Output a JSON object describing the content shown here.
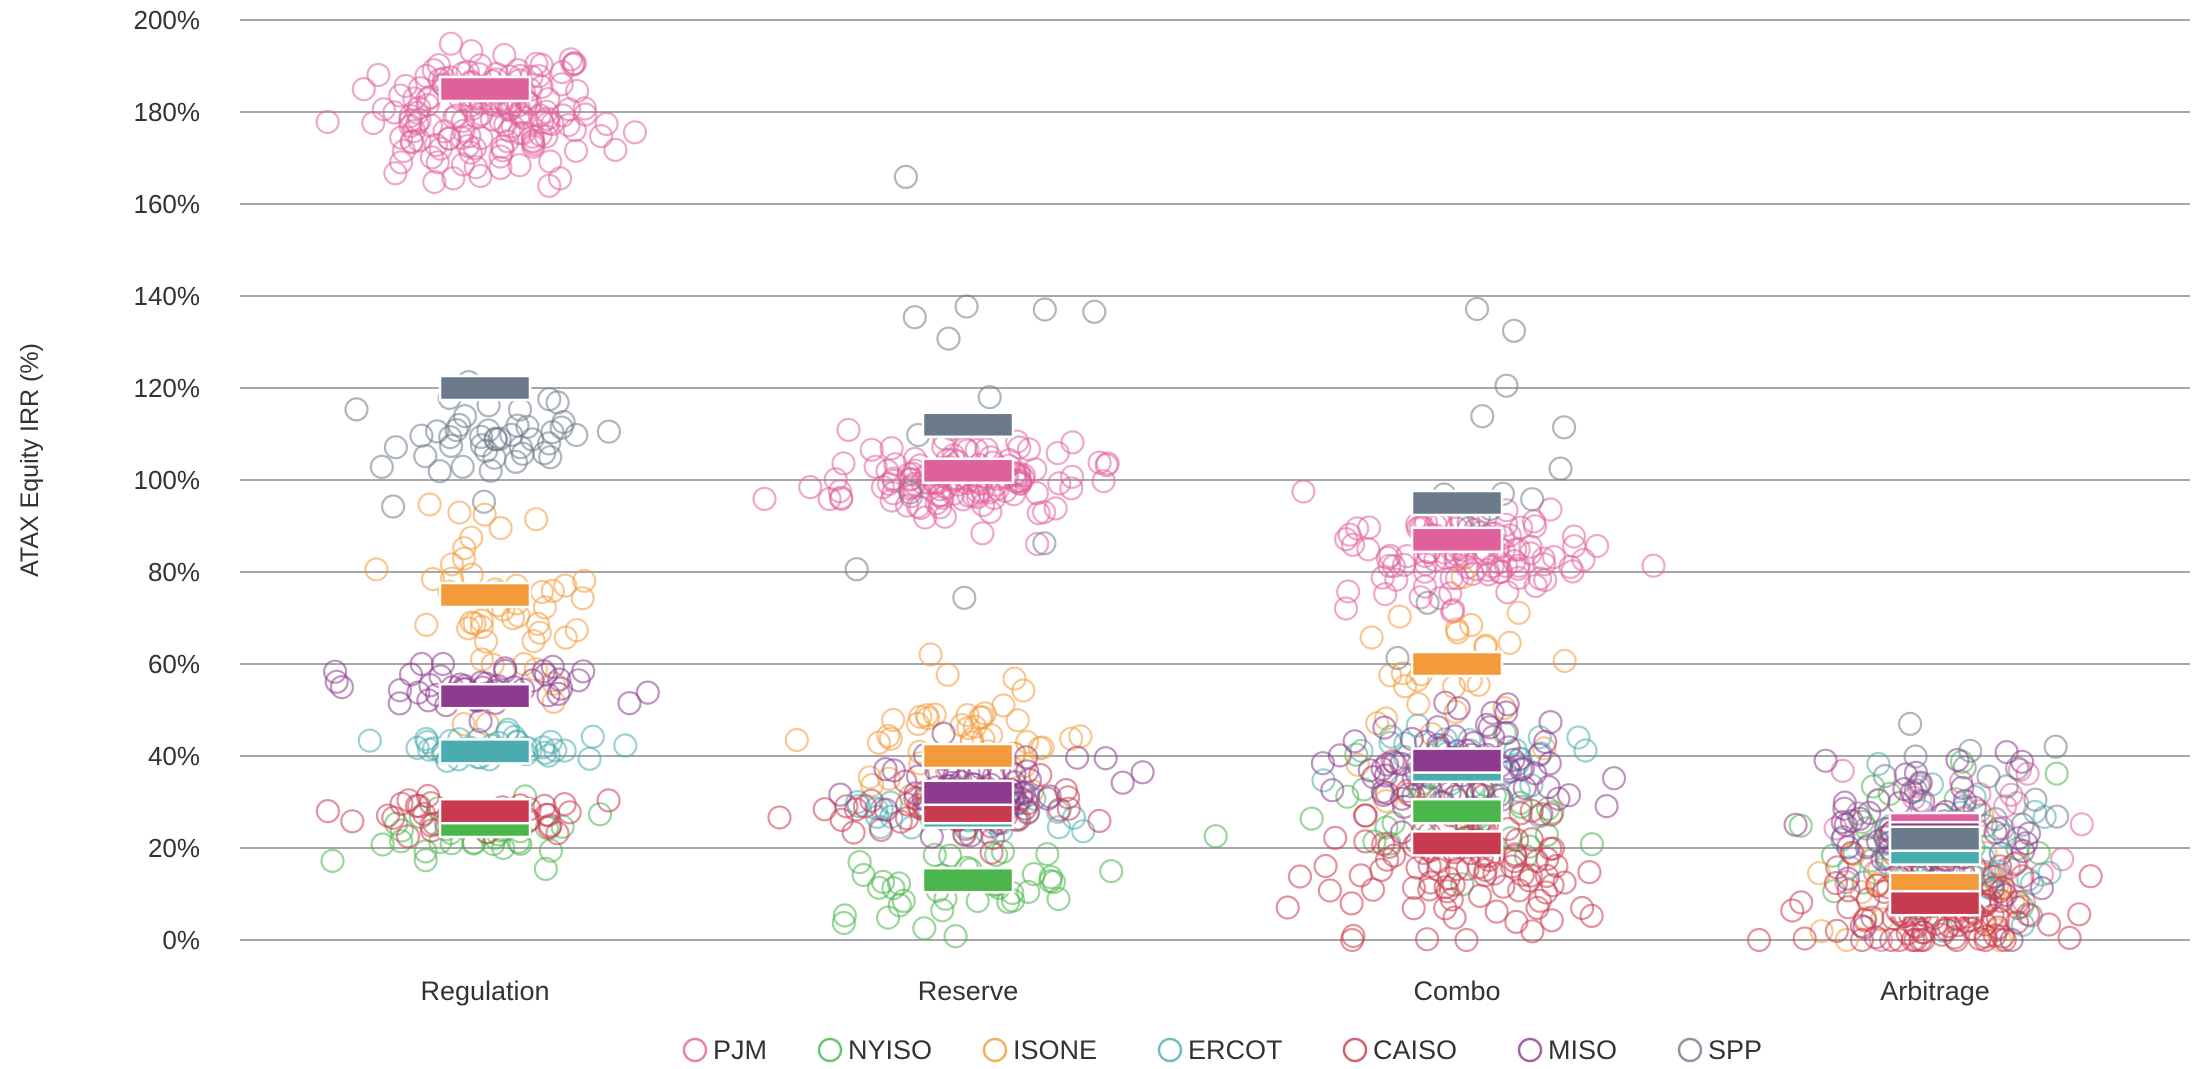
{
  "chart_data": {
    "type": "scatter",
    "title": "",
    "xlabel": "",
    "ylabel": "ATAX Equity IRR (%)",
    "ylim": [
      0,
      200
    ],
    "yticks": [
      0,
      20,
      40,
      60,
      80,
      100,
      120,
      140,
      160,
      180,
      200
    ],
    "ytick_labels": [
      "0%",
      "20%",
      "40%",
      "60%",
      "80%",
      "100%",
      "120%",
      "140%",
      "160%",
      "180%",
      "200%"
    ],
    "grid": true,
    "legend_position": "bottom",
    "categories": [
      "Regulation",
      "Reserve",
      "Combo",
      "Arbitrage"
    ],
    "colors": {
      "PJM": "#e0609e",
      "NYISO": "#4ab54a",
      "ISONE": "#f39a3a",
      "ERCOT": "#4aacae",
      "CAISO": "#c83a4e",
      "MISO": "#8e3a8e",
      "SPP": "#6b7a8a"
    },
    "series": [
      {
        "name": "PJM",
        "mean": [
          185,
          102,
          87,
          25
        ],
        "clusters": [
          [
            180,
            7,
            160
          ],
          [
            100,
            4,
            130
          ],
          [
            84,
            6,
            110
          ],
          [
            22,
            10,
            40
          ]
        ]
      },
      {
        "name": "NYISO",
        "mean": [
          25,
          13,
          28,
          22
        ],
        "clusters": [
          [
            24,
            3,
            35
          ],
          [
            12,
            5,
            40
          ],
          [
            26,
            6,
            35
          ],
          [
            20,
            8,
            30
          ]
        ]
      },
      {
        "name": "ISONE",
        "mean": [
          75,
          40,
          60,
          12
        ],
        "clusters": [
          [
            72,
            12,
            50
          ],
          [
            45,
            8,
            50
          ],
          [
            55,
            10,
            30
          ],
          [
            12,
            7,
            25
          ]
        ]
      },
      {
        "name": "ERCOT",
        "mean": [
          41,
          27,
          37,
          19
        ],
        "clusters": [
          [
            41,
            2,
            40
          ],
          [
            27,
            2,
            40
          ],
          [
            37,
            5,
            40
          ],
          [
            20,
            8,
            40
          ]
        ]
      },
      {
        "name": "CAISO",
        "mean": [
          28,
          28,
          21,
          8
        ],
        "clusters": [
          [
            27,
            2,
            50
          ],
          [
            28,
            3,
            60
          ],
          [
            18,
            8,
            110
          ],
          [
            7,
            6,
            110
          ]
        ]
      },
      {
        "name": "MISO",
        "mean": [
          53,
          32,
          39,
          23
        ],
        "clusters": [
          [
            55,
            3,
            50
          ],
          [
            33,
            4,
            60
          ],
          [
            38,
            6,
            80
          ],
          [
            24,
            8,
            60
          ]
        ]
      },
      {
        "name": "SPP",
        "mean": [
          120,
          112,
          95,
          22
        ],
        "clusters": [
          [
            107,
            5,
            45
          ],
          [
            110,
            20,
            12
          ],
          [
            100,
            20,
            14
          ],
          [
            26,
            8,
            30
          ]
        ]
      }
    ],
    "legend": [
      "PJM",
      "NYISO",
      "ISONE",
      "ERCOT",
      "CAISO",
      "MISO",
      "SPP"
    ]
  }
}
